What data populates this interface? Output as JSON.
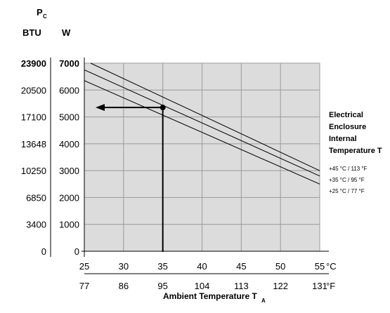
{
  "chart_data": {
    "type": "line",
    "y_header": {
      "symbol": "P",
      "subscript": "C"
    },
    "y_unit_btu": "BTU",
    "y_unit_w": "W",
    "y_ticks_w": [
      "7000",
      "6000",
      "5000",
      "4000",
      "3000",
      "2000",
      "1000",
      "0"
    ],
    "y_ticks_btu": [
      "23900",
      "20500",
      "17100",
      "13648",
      "10250",
      "6850",
      "3400",
      "0"
    ],
    "x_ticks_c": [
      "25",
      "30",
      "35",
      "40",
      "45",
      "50",
      "55"
    ],
    "x_unit_c": "°C",
    "x_ticks_f": [
      "77",
      "86",
      "95",
      "104",
      "113",
      "122",
      "131"
    ],
    "x_unit_f": "°F",
    "xlabel": {
      "text": "Ambient Temperature T",
      "subscript": "A"
    },
    "xlim": [
      25,
      55
    ],
    "ylim": [
      0,
      7000
    ],
    "grid": true,
    "legend_title": [
      "Electrical",
      "Enclosure",
      "Internal",
      "Temperature T"
    ],
    "series": [
      {
        "name": "+45 °C / 113 °F",
        "x": [
          25.8,
          55
        ],
        "y": [
          7000,
          3000
        ]
      },
      {
        "name": "+35 °C / 95 °F",
        "x": [
          25,
          55
        ],
        "y": [
          6750,
          2800
        ]
      },
      {
        "name": "+25 °C / 77 °F",
        "x": [
          25,
          55
        ],
        "y": [
          6350,
          2500
        ]
      }
    ],
    "annotation": {
      "x": 35,
      "y": 5350
    }
  }
}
